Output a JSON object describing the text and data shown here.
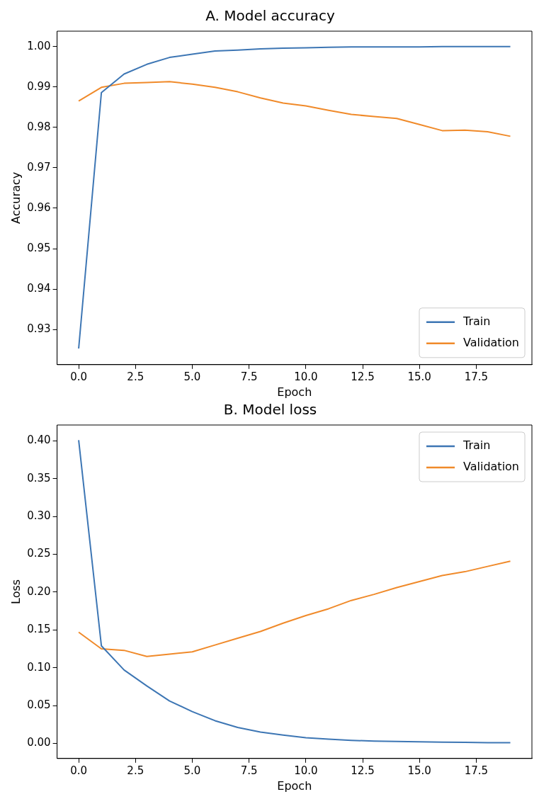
{
  "chart_data": [
    {
      "type": "line",
      "title": "A. Model accuracy",
      "xlabel": "Epoch",
      "ylabel": "Accuracy",
      "x": [
        0,
        1,
        2,
        3,
        4,
        5,
        6,
        7,
        8,
        9,
        10,
        11,
        12,
        13,
        14,
        15,
        16,
        17,
        18,
        19
      ],
      "series": [
        {
          "name": "Train",
          "color": "#3d76b4",
          "values": [
            0.9253,
            0.9886,
            0.9932,
            0.9956,
            0.9973,
            0.9981,
            0.9989,
            0.9991,
            0.9994,
            0.9996,
            0.9997,
            0.9998,
            0.9999,
            0.9999,
            0.9999,
            0.9999,
            1.0,
            1.0,
            1.0,
            1.0
          ]
        },
        {
          "name": "Validation",
          "color": "#f08a2a",
          "values": [
            0.9865,
            0.9899,
            0.9909,
            0.9911,
            0.9913,
            0.9907,
            0.9899,
            0.9888,
            0.9873,
            0.986,
            0.9853,
            0.9842,
            0.9832,
            0.9827,
            0.9822,
            0.9807,
            0.9792,
            0.9793,
            0.9789,
            0.9778
          ]
        }
      ],
      "xlim": [
        -0.95,
        19.95
      ],
      "xticks": [
        {
          "value": 0,
          "label": "0.0"
        },
        {
          "value": 2.5,
          "label": "2.5"
        },
        {
          "value": 5,
          "label": "5.0"
        },
        {
          "value": 7.5,
          "label": "7.5"
        },
        {
          "value": 10,
          "label": "10.0"
        },
        {
          "value": 12.5,
          "label": "12.5"
        },
        {
          "value": 15,
          "label": "15.0"
        },
        {
          "value": 17.5,
          "label": "17.5"
        }
      ],
      "ylim": [
        0.9213,
        1.0038
      ],
      "yticks": [
        {
          "value": 0.93,
          "label": "0.93"
        },
        {
          "value": 0.94,
          "label": "0.94"
        },
        {
          "value": 0.95,
          "label": "0.95"
        },
        {
          "value": 0.96,
          "label": "0.96"
        },
        {
          "value": 0.97,
          "label": "0.97"
        },
        {
          "value": 0.98,
          "label": "0.98"
        },
        {
          "value": 0.99,
          "label": "0.99"
        },
        {
          "value": 1,
          "label": "1.00"
        }
      ],
      "grid": false,
      "legend": "bottom right",
      "line_style": "solid",
      "marker": "none"
    },
    {
      "type": "line",
      "title": "B. Model loss",
      "xlabel": "Epoch",
      "ylabel": "Loss",
      "x": [
        0,
        1,
        2,
        3,
        4,
        5,
        6,
        7,
        8,
        9,
        10,
        11,
        12,
        13,
        14,
        15,
        16,
        17,
        18,
        19
      ],
      "series": [
        {
          "name": "Train",
          "color": "#3d76b4",
          "values": [
            0.401,
            0.129,
            0.097,
            0.076,
            0.056,
            0.042,
            0.03,
            0.021,
            0.015,
            0.011,
            0.0075,
            0.0055,
            0.004,
            0.003,
            0.0025,
            0.002,
            0.0015,
            0.0013,
            0.001,
            0.0008
          ]
        },
        {
          "name": "Validation",
          "color": "#f08a2a",
          "values": [
            0.147,
            0.125,
            0.123,
            0.115,
            0.118,
            0.121,
            0.13,
            0.139,
            0.148,
            0.159,
            0.169,
            0.178,
            0.189,
            0.197,
            0.206,
            0.214,
            0.222,
            0.227,
            0.234,
            0.241
          ]
        }
      ],
      "xlim": [
        -0.95,
        19.95
      ],
      "xticks": [
        {
          "value": 0,
          "label": "0.0"
        },
        {
          "value": 2.5,
          "label": "2.5"
        },
        {
          "value": 5,
          "label": "5.0"
        },
        {
          "value": 7.5,
          "label": "7.5"
        },
        {
          "value": 10,
          "label": "10.0"
        },
        {
          "value": 12.5,
          "label": "12.5"
        },
        {
          "value": 15,
          "label": "15.0"
        },
        {
          "value": 17.5,
          "label": "17.5"
        }
      ],
      "ylim": [
        -0.02,
        0.421
      ],
      "yticks": [
        {
          "value": 0,
          "label": "0.00"
        },
        {
          "value": 0.05,
          "label": "0.05"
        },
        {
          "value": 0.1,
          "label": "0.10"
        },
        {
          "value": 0.15,
          "label": "0.15"
        },
        {
          "value": 0.2,
          "label": "0.20"
        },
        {
          "value": 0.25,
          "label": "0.25"
        },
        {
          "value": 0.3,
          "label": "0.30"
        },
        {
          "value": 0.35,
          "label": "0.35"
        },
        {
          "value": 0.4,
          "label": "0.40"
        }
      ],
      "grid": false,
      "legend": "top right",
      "line_style": "solid",
      "marker": "none"
    }
  ]
}
